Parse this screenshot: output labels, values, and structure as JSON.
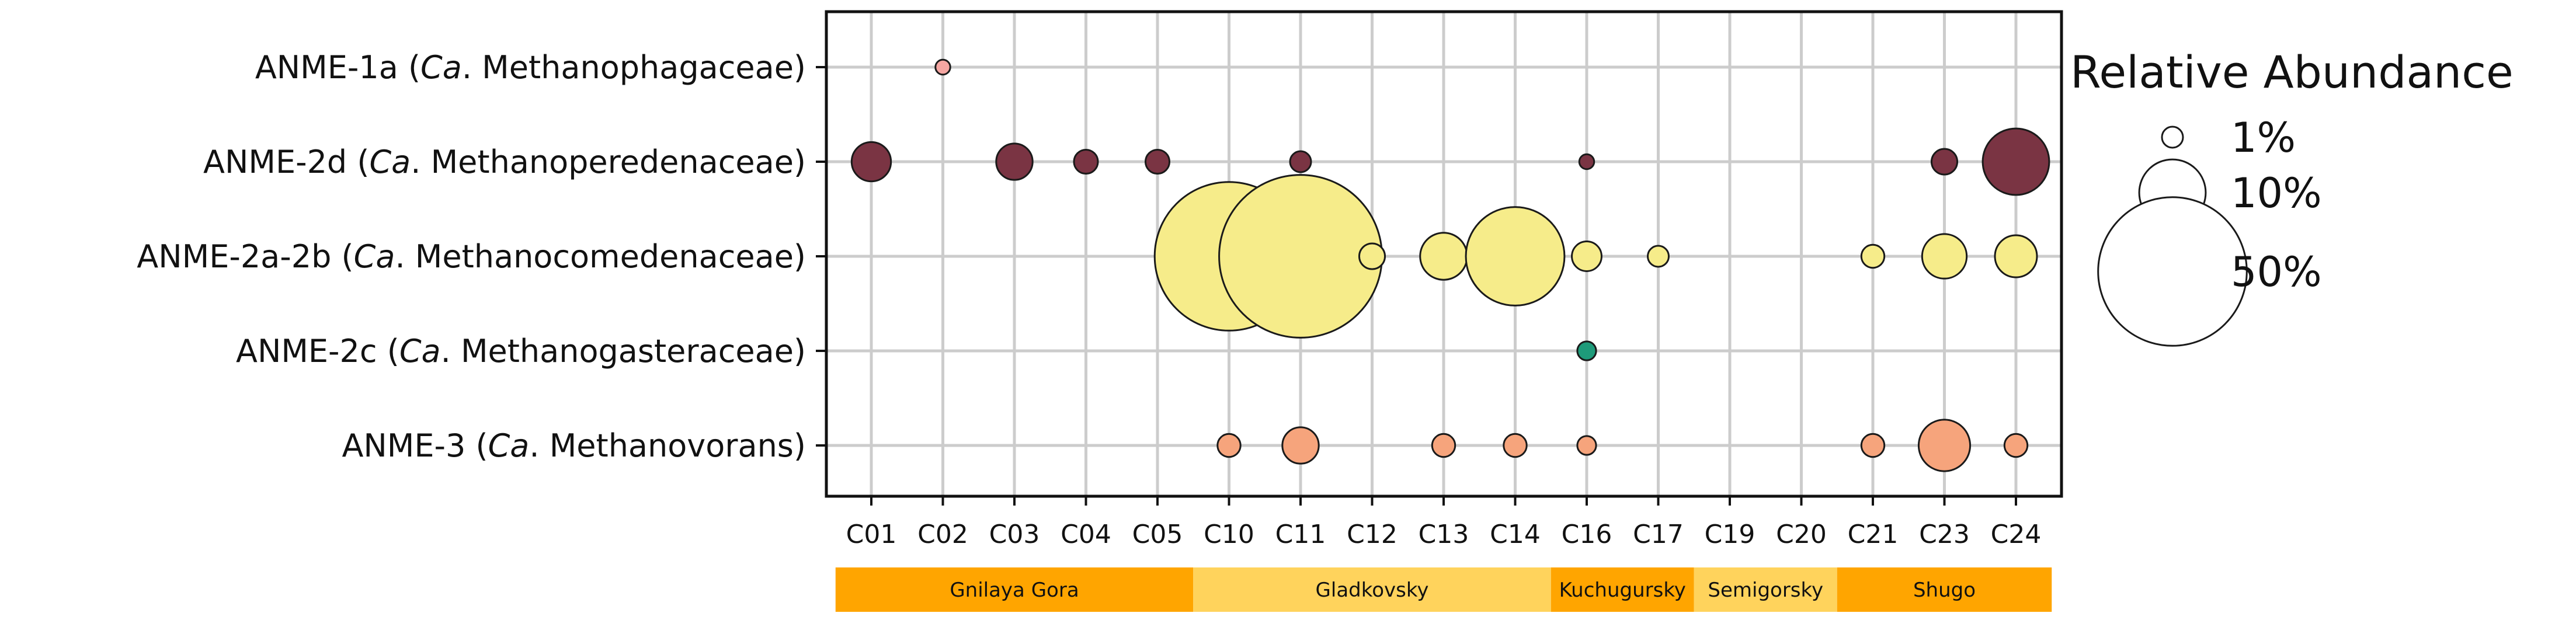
{
  "chart_data": {
    "type": "scatter",
    "subtype": "bubble",
    "title": "",
    "xlabel": "",
    "ylabel": "",
    "categories": [
      "C01",
      "C02",
      "C03",
      "C04",
      "C05",
      "C10",
      "C11",
      "C12",
      "C13",
      "C14",
      "C16",
      "C17",
      "C19",
      "C20",
      "C21",
      "C23",
      "C24"
    ],
    "rows": [
      {
        "name_parts": [
          {
            "text": "ANME-1a (",
            "italic": false
          },
          {
            "text": "Ca",
            "italic": true
          },
          {
            "text": ". Methanophagaceae)",
            "italic": false
          }
        ]
      },
      {
        "name_parts": [
          {
            "text": "ANME-2d (",
            "italic": false
          },
          {
            "text": "Ca",
            "italic": true
          },
          {
            "text": ". Methanoperedenaceae)",
            "italic": false
          }
        ]
      },
      {
        "name_parts": [
          {
            "text": "ANME-2a-2b (",
            "italic": false
          },
          {
            "text": "Ca",
            "italic": true
          },
          {
            "text": ". Methanocomedenaceae)",
            "italic": false
          }
        ]
      },
      {
        "name_parts": [
          {
            "text": "ANME-2c (",
            "italic": false
          },
          {
            "text": "Ca",
            "italic": true
          },
          {
            "text": ". Methanogasteraceae)",
            "italic": false
          }
        ]
      },
      {
        "name_parts": [
          {
            "text": "ANME-3 (",
            "italic": false
          },
          {
            "text": "Ca",
            "italic": true
          },
          {
            "text": ". Methanovorans)",
            "italic": false
          }
        ]
      }
    ],
    "series": [
      {
        "row": 0,
        "color": "#f5a6a2",
        "points": [
          {
            "x": "C02",
            "value": 0.5
          }
        ]
      },
      {
        "row": 1,
        "color": "#7a3443",
        "points": [
          {
            "x": "C01",
            "value": 3.5
          },
          {
            "x": "C03",
            "value": 3
          },
          {
            "x": "C04",
            "value": 1.3
          },
          {
            "x": "C05",
            "value": 1.3
          },
          {
            "x": "C11",
            "value": 1
          },
          {
            "x": "C16",
            "value": 0.5
          },
          {
            "x": "C23",
            "value": 1.5
          },
          {
            "x": "C24",
            "value": 10
          }
        ]
      },
      {
        "row": 2,
        "color": "#f6ec8a",
        "points": [
          {
            "x": "C10",
            "value": 50
          },
          {
            "x": "C11",
            "value": 60
          },
          {
            "x": "C12",
            "value": 1.5
          },
          {
            "x": "C13",
            "value": 5
          },
          {
            "x": "C14",
            "value": 22
          },
          {
            "x": "C16",
            "value": 2
          },
          {
            "x": "C17",
            "value": 1
          },
          {
            "x": "C21",
            "value": 1.2
          },
          {
            "x": "C23",
            "value": 4.5
          },
          {
            "x": "C24",
            "value": 4
          }
        ]
      },
      {
        "row": 3,
        "color": "#1e9b7a",
        "points": [
          {
            "x": "C16",
            "value": 0.8
          }
        ]
      },
      {
        "row": 4,
        "color": "#f6a47c",
        "points": [
          {
            "x": "C10",
            "value": 1.2
          },
          {
            "x": "C11",
            "value": 3
          },
          {
            "x": "C13",
            "value": 1.2
          },
          {
            "x": "C14",
            "value": 1.2
          },
          {
            "x": "C16",
            "value": 0.8
          },
          {
            "x": "C21",
            "value": 1.2
          },
          {
            "x": "C23",
            "value": 6
          },
          {
            "x": "C24",
            "value": 1.2
          }
        ]
      }
    ],
    "sites": [
      {
        "label": "Gnilaya Gora",
        "from": "C01",
        "to": "C05",
        "color": "#ffa500"
      },
      {
        "label": "Gladkovsky",
        "from": "C10",
        "to": "C14",
        "color": "#ffd35c"
      },
      {
        "label": "Kuchugursky",
        "from": "C16",
        "to": "C17",
        "color": "#ffa500"
      },
      {
        "label": "Semigorsky",
        "from": "C19",
        "to": "C20",
        "color": "#ffd35c"
      },
      {
        "label": "Shugo",
        "from": "C21",
        "to": "C24",
        "color": "#ffa500"
      }
    ],
    "legend": {
      "title": "Relative Abundance",
      "placement": "right",
      "entries": [
        {
          "label": "1%",
          "value": 1
        },
        {
          "label": "10%",
          "value": 10
        },
        {
          "label": "50%",
          "value": 50
        }
      ]
    },
    "grid": true,
    "edge_color": "#1a1a1a"
  }
}
